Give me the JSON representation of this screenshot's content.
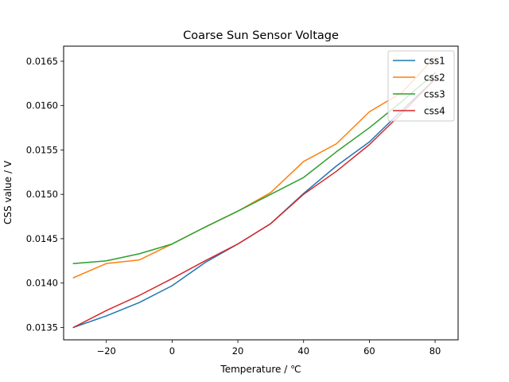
{
  "chart_data": {
    "type": "line",
    "title": "Coarse Sun Sensor Voltage",
    "xlabel": "Temperature / ℃",
    "ylabel": "CSS value / V",
    "xlim": [
      -33,
      87
    ],
    "ylim": [
      0.01336,
      0.01667
    ],
    "xticks": [
      -20,
      0,
      20,
      40,
      60,
      80
    ],
    "xtick_labels": [
      "−20",
      "0",
      "20",
      "40",
      "60",
      "80"
    ],
    "yticks": [
      0.0135,
      0.014,
      0.0145,
      0.015,
      0.0155,
      0.016,
      0.0165
    ],
    "ytick_labels": [
      "0.0135",
      "0.0140",
      "0.0145",
      "0.0150",
      "0.0155",
      "0.0160",
      "0.0165"
    ],
    "grid": false,
    "legend_position": "top-right",
    "x": [
      -30,
      -20,
      -10,
      0,
      10,
      20,
      30,
      40,
      50,
      60,
      70,
      80
    ],
    "series": [
      {
        "name": "css1",
        "color": "#1f77b4",
        "values": [
          0.0135,
          0.01363,
          0.01378,
          0.01397,
          0.01423,
          0.01444,
          0.01467,
          0.01501,
          0.01532,
          0.01559,
          0.01595,
          0.0163
        ]
      },
      {
        "name": "css2",
        "color": "#ff7f0e",
        "values": [
          0.01406,
          0.01422,
          0.01426,
          0.01444,
          0.01463,
          0.01481,
          0.01502,
          0.01537,
          0.01557,
          0.01593,
          0.01615,
          0.01655
        ]
      },
      {
        "name": "css3",
        "color": "#2ca02c",
        "values": [
          0.01422,
          0.01425,
          0.01433,
          0.01444,
          0.01463,
          0.01481,
          0.015,
          0.01519,
          0.01548,
          0.01575,
          0.01605,
          0.01637
        ]
      },
      {
        "name": "css4",
        "color": "#d62728",
        "values": [
          0.0135,
          0.01369,
          0.01386,
          0.01405,
          0.01425,
          0.01444,
          0.01467,
          0.015,
          0.01526,
          0.01556,
          0.01592,
          0.0163
        ]
      }
    ]
  }
}
